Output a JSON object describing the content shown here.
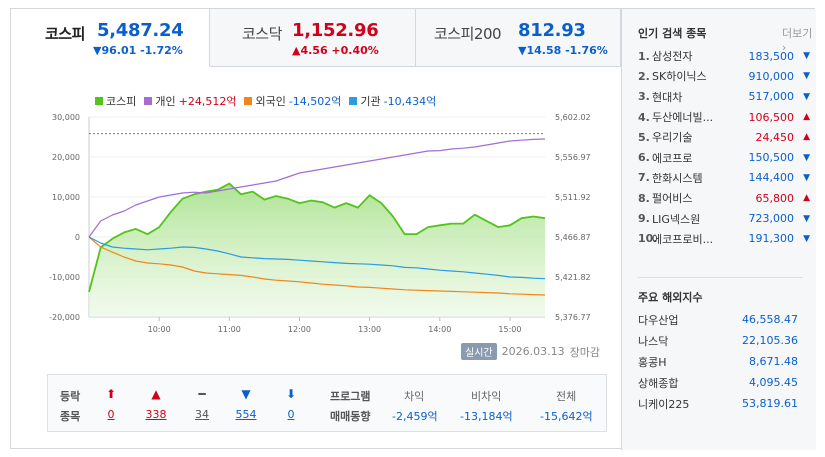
{
  "tabs": [
    {
      "name": "코스피",
      "value": "5,487.24",
      "change": "▼96.01 -1.72%",
      "dir": "down"
    },
    {
      "name": "코스닥",
      "value": "1,152.96",
      "change": "▲4.56 +0.40%",
      "dir": "up"
    },
    {
      "name": "코스피200",
      "value": "812.93",
      "change": "▼14.58 -1.76%",
      "dir": "down"
    }
  ],
  "legend": {
    "kospi": "코스피",
    "individual": "개인",
    "individual_val": "+24,512억",
    "foreign": "외국인",
    "foreign_val": "-14,502억",
    "institution": "기관",
    "institution_val": "-10,434억"
  },
  "colors": {
    "kospi": "#52c41a",
    "individual": "#a36dd6",
    "foreign": "#f0861c",
    "institution": "#2c9be0",
    "up": "#d0021b",
    "down": "#0b5fcc"
  },
  "stamp": {
    "badge": "실시간",
    "date": "2026.03.13",
    "status": "장마감"
  },
  "stats": {
    "label1": "등락",
    "label2": "종목",
    "cols": [
      {
        "icon": "⬆",
        "count": "0",
        "dir": "up"
      },
      {
        "icon": "▲",
        "count": "338",
        "dir": "up"
      },
      {
        "icon": "━",
        "count": "34",
        "dir": "flat"
      },
      {
        "icon": "▼",
        "count": "554",
        "dir": "down"
      },
      {
        "icon": "⬇",
        "count": "0",
        "dir": "down"
      }
    ],
    "program1": "프로그램",
    "program2": "매매동향",
    "program_cols": [
      {
        "head": "차익",
        "value": "-2,459억"
      },
      {
        "head": "비차익",
        "value": "-13,184억"
      },
      {
        "head": "전체",
        "value": "-15,642억"
      }
    ]
  },
  "popular": {
    "title": "인기 검색 종목",
    "more": "더보기",
    "items": [
      {
        "rank": "1.",
        "name": "삼성전자",
        "price": "183,500",
        "dir": "down"
      },
      {
        "rank": "2.",
        "name": "SK하이닉스",
        "price": "910,000",
        "dir": "down"
      },
      {
        "rank": "3.",
        "name": "현대차",
        "price": "517,000",
        "dir": "down"
      },
      {
        "rank": "4.",
        "name": "두산에너빌...",
        "price": "106,500",
        "dir": "up"
      },
      {
        "rank": "5.",
        "name": "우리기술",
        "price": "24,450",
        "dir": "up"
      },
      {
        "rank": "6.",
        "name": "에코프로",
        "price": "150,500",
        "dir": "down"
      },
      {
        "rank": "7.",
        "name": "한화시스템",
        "price": "144,400",
        "dir": "down"
      },
      {
        "rank": "8.",
        "name": "펄어비스",
        "price": "65,800",
        "dir": "up"
      },
      {
        "rank": "9.",
        "name": "LIG넥스원",
        "price": "723,000",
        "dir": "down"
      },
      {
        "rank": "10.",
        "name": "에코프로비...",
        "price": "191,300",
        "dir": "down"
      }
    ]
  },
  "world": {
    "title": "주요 해외지수",
    "items": [
      {
        "name": "다우산업",
        "value": "46,558.47"
      },
      {
        "name": "나스닥",
        "value": "22,105.36"
      },
      {
        "name": "홍콩H",
        "value": "8,671.48"
      },
      {
        "name": "상해종합",
        "value": "4,095.45"
      },
      {
        "name": "니케이225",
        "value": "53,819.61"
      }
    ]
  },
  "chart_data": {
    "type": "line",
    "x_ticks": [
      "10:00",
      "11:00",
      "12:00",
      "13:00",
      "14:00",
      "15:00"
    ],
    "y_left_ticks": [
      "30,000",
      "20,000",
      "10,000",
      "0",
      "-10,000",
      "-20,000"
    ],
    "y_right_ticks": [
      "5,602.02",
      "5,556.97",
      "5,511.92",
      "5,466.87",
      "5,421.82",
      "5,376.77"
    ],
    "ylim_left": [
      -20000,
      30000
    ],
    "ylim_right": [
      5376.77,
      5602.02
    ],
    "prev_close_right": 5583.25,
    "x": [
      "09:00",
      "09:10",
      "09:20",
      "09:30",
      "09:40",
      "09:50",
      "10:00",
      "10:10",
      "10:20",
      "10:30",
      "10:40",
      "10:50",
      "11:00",
      "11:10",
      "11:20",
      "11:30",
      "11:40",
      "11:50",
      "12:00",
      "12:10",
      "12:20",
      "12:30",
      "12:40",
      "12:50",
      "13:00",
      "13:10",
      "13:20",
      "13:30",
      "13:40",
      "13:50",
      "14:00",
      "14:10",
      "14:20",
      "14:30",
      "14:40",
      "14:50",
      "15:00",
      "15:10",
      "15:20",
      "15:30"
    ],
    "series": [
      {
        "name": "코스피",
        "axis": "right",
        "values": [
          5405,
          5455,
          5465,
          5472,
          5476,
          5470,
          5478,
          5495,
          5510,
          5515,
          5518,
          5520,
          5527,
          5515,
          5518,
          5509,
          5513,
          5510,
          5505,
          5508,
          5506,
          5500,
          5505,
          5500,
          5514,
          5505,
          5490,
          5470,
          5470,
          5478,
          5480,
          5482,
          5482,
          5492,
          5485,
          5478,
          5480,
          5488,
          5490,
          5488
        ]
      },
      {
        "name": "개인",
        "axis": "left",
        "values": [
          0,
          4000,
          5500,
          6500,
          8000,
          9000,
          10000,
          10500,
          11000,
          11200,
          11000,
          11500,
          12000,
          12500,
          13000,
          13500,
          14000,
          15000,
          16000,
          16500,
          17000,
          17500,
          18000,
          18500,
          19000,
          19500,
          20000,
          20500,
          21000,
          21500,
          21600,
          22000,
          22200,
          22500,
          23000,
          23500,
          24000,
          24200,
          24400,
          24512
        ]
      },
      {
        "name": "외국인",
        "axis": "left",
        "values": [
          0,
          -2500,
          -3800,
          -5000,
          -6000,
          -6500,
          -6700,
          -7000,
          -7500,
          -8500,
          -9000,
          -9200,
          -9400,
          -9600,
          -10000,
          -10500,
          -10800,
          -11000,
          -11200,
          -11500,
          -11800,
          -12000,
          -12200,
          -12500,
          -12600,
          -12800,
          -13000,
          -13200,
          -13300,
          -13400,
          -13500,
          -13600,
          -13700,
          -13800,
          -13900,
          -14000,
          -14200,
          -14300,
          -14400,
          -14502
        ]
      },
      {
        "name": "기관",
        "axis": "left",
        "values": [
          0,
          -1500,
          -2500,
          -2800,
          -3000,
          -3200,
          -3000,
          -2800,
          -2500,
          -2600,
          -3000,
          -3500,
          -4200,
          -5000,
          -5200,
          -5400,
          -5500,
          -5600,
          -5800,
          -6000,
          -6200,
          -6400,
          -6600,
          -6700,
          -6800,
          -7000,
          -7200,
          -7600,
          -7700,
          -8000,
          -8300,
          -8500,
          -8700,
          -9000,
          -9300,
          -9600,
          -10000,
          -10100,
          -10300,
          -10434
        ]
      }
    ]
  }
}
